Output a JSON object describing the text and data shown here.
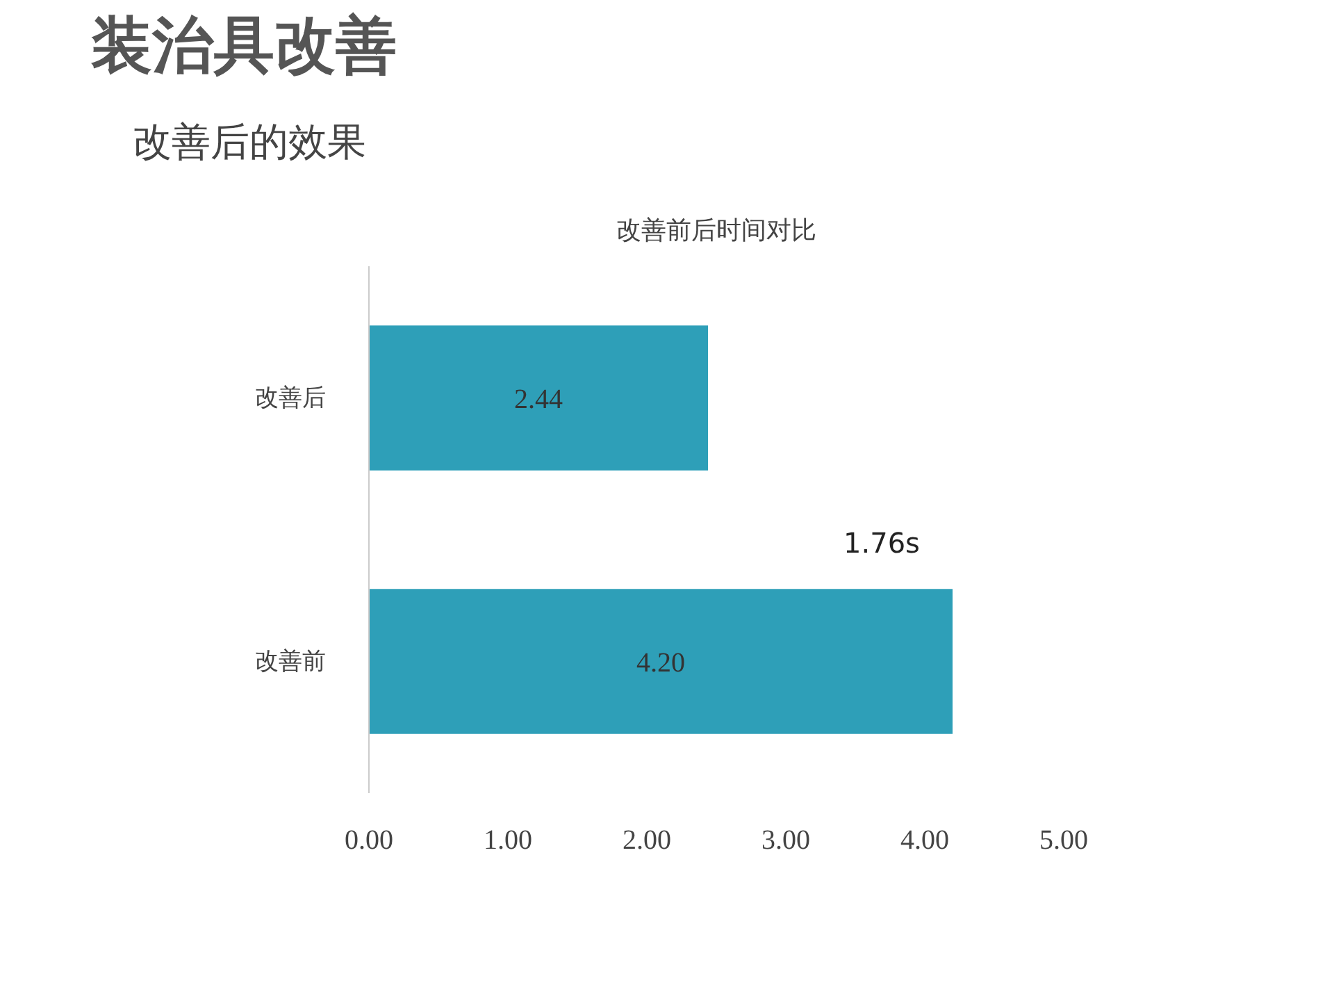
{
  "chart_data": {
    "type": "bar",
    "orientation": "horizontal",
    "title": "装治具改善",
    "subtitle": "改善后的效果",
    "xlabel": "改善前后时间对比",
    "categories": [
      "改善后",
      "改善前"
    ],
    "values": [
      2.44,
      4.2
    ],
    "value_labels": [
      "2.44",
      "4.20"
    ],
    "color": "#2e9fb8",
    "xlim": [
      0,
      5
    ],
    "xticks": [
      {
        "value": 0,
        "label": "0.00"
      },
      {
        "value": 1,
        "label": "1.00"
      },
      {
        "value": 2,
        "label": "2.00"
      },
      {
        "value": 3,
        "label": "3.00"
      },
      {
        "value": 4,
        "label": "4.00"
      },
      {
        "value": 5,
        "label": "5.00"
      }
    ],
    "annotations": [
      "1.76s"
    ],
    "grid": false
  }
}
